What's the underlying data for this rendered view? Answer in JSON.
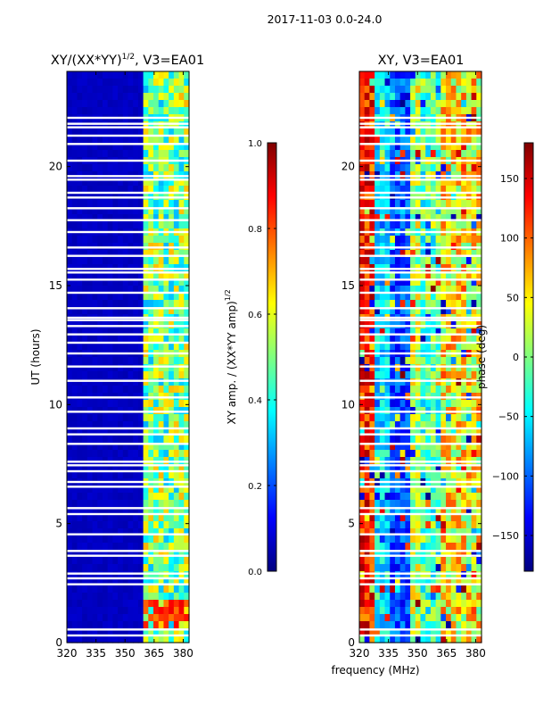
{
  "suptitle": "2017-11-03 0.0-24.0",
  "colors": {
    "jet": [
      "#00007f",
      "#0000ff",
      "#007fff",
      "#00ffff",
      "#7fff7f",
      "#ffff00",
      "#ff7f00",
      "#ff0000",
      "#7f0000"
    ],
    "gap": "#ffffff"
  },
  "chart_data": [
    {
      "type": "heatmap",
      "title_main": "XY/(XX*YY)",
      "title_sup": "1/2",
      "title_tail": ", V3=EA01",
      "ylabel": "UT (hours)",
      "xlabel": "",
      "xlim": [
        320,
        383
      ],
      "ylim": [
        0,
        24
      ],
      "xticks": [
        320,
        335,
        350,
        365,
        380
      ],
      "yticks": [
        0,
        5,
        10,
        15,
        20
      ],
      "colorbar": {
        "label_main": "XY amp. / (XX*YY amp)",
        "label_sup": "1/2",
        "range": [
          0.0,
          1.0
        ],
        "ticks": [
          "0.0",
          "0.2",
          "0.4",
          "0.6",
          "0.8",
          "1.0"
        ],
        "tick_values": [
          0.0,
          0.2,
          0.4,
          0.6,
          0.8,
          1.0
        ]
      },
      "description_values": {
        "background_value": 0.05,
        "active_band_mhz": [
          359,
          383
        ],
        "active_band_value_range": [
          0.3,
          0.7
        ],
        "strong_feature_hours": [
          0.7,
          1.8
        ]
      }
    },
    {
      "type": "heatmap",
      "title_main": "XY, V3=EA01",
      "ylabel": "",
      "xlabel": "frequency (MHz)",
      "xlim": [
        320,
        383
      ],
      "ylim": [
        0,
        24
      ],
      "xticks": [
        320,
        335,
        350,
        365,
        380
      ],
      "yticks": [
        0,
        5,
        10,
        15,
        20
      ],
      "colorbar": {
        "label_main": "phase (deg)",
        "range": [
          -180,
          180
        ],
        "ticks": [
          "−150",
          "−100",
          "−50",
          "0",
          "50",
          "100",
          "150"
        ],
        "tick_values": [
          -150,
          -100,
          -50,
          0,
          50,
          100,
          150
        ]
      }
    }
  ],
  "gap_rows_hours": [
    0.3,
    0.55,
    2.45,
    2.7,
    2.9,
    3.65,
    3.85,
    4.55,
    5.4,
    5.65,
    6.55,
    6.75,
    7.2,
    7.45,
    7.6,
    8.35,
    8.75,
    9.0,
    9.7,
    10.3,
    11.0,
    11.6,
    12.15,
    12.6,
    12.95,
    13.3,
    13.55,
    13.65,
    14.05,
    14.7,
    15.25,
    15.55,
    15.7,
    16.25,
    16.6,
    17.25,
    17.75,
    18.25,
    18.7,
    18.9,
    19.45,
    19.6,
    20.25,
    20.95,
    21.3,
    21.65,
    21.8,
    22.05
  ]
}
